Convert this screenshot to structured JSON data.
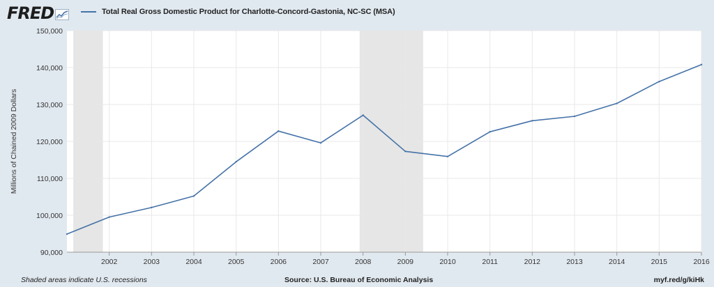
{
  "header": {
    "logo": "FRED",
    "logo_icon": "chart-line-icon",
    "series_title": "Total Real Gross Domestic Product for Charlotte-Concord-Gastonia, NC-SC (MSA)"
  },
  "footer": {
    "note": "Shaded areas indicate U.S. recessions",
    "source": "Source: U.S. Bureau of Economic Analysis",
    "url": "myf.red/g/kiHk"
  },
  "colors": {
    "line": "#4572a7",
    "recession": "#e6e6e6",
    "background": "#e1e9f0",
    "plot": "#ffffff"
  },
  "chart_data": {
    "type": "line",
    "title": "Total Real Gross Domestic Product for Charlotte-Concord-Gastonia, NC-SC (MSA)",
    "ylabel": "Millions of Chained 2009 Dollars",
    "xlabel": "",
    "ylim": [
      90000,
      150000
    ],
    "xlim": [
      2001,
      2016
    ],
    "yticks": [
      90000,
      100000,
      110000,
      120000,
      130000,
      140000,
      150000
    ],
    "ytick_labels": [
      "90,000",
      "100,000",
      "110,000",
      "120,000",
      "130,000",
      "140,000",
      "150,000"
    ],
    "xticks": [
      2002,
      2003,
      2004,
      2005,
      2006,
      2007,
      2008,
      2009,
      2010,
      2011,
      2012,
      2013,
      2014,
      2015,
      2016
    ],
    "xtick_labels": [
      "2002",
      "2003",
      "2004",
      "2005",
      "2006",
      "2007",
      "2008",
      "2009",
      "2010",
      "2011",
      "2012",
      "2013",
      "2014",
      "2015",
      "2016"
    ],
    "grid": true,
    "legend": "top-left",
    "recessions": [
      {
        "start": 2001.15,
        "end": 2001.85
      },
      {
        "start": 2007.92,
        "end": 2009.42
      }
    ],
    "series": [
      {
        "name": "Total Real Gross Domestic Product for Charlotte-Concord-Gastonia, NC-SC (MSA)",
        "x": [
          2001,
          2002,
          2003,
          2004,
          2005,
          2006,
          2007,
          2008,
          2009,
          2010,
          2011,
          2012,
          2013,
          2014,
          2015,
          2016
        ],
        "y": [
          94900,
          99500,
          102100,
          105200,
          114500,
          122800,
          119600,
          127100,
          117300,
          115900,
          122600,
          125600,
          126800,
          130300,
          136200,
          140800
        ]
      }
    ]
  }
}
